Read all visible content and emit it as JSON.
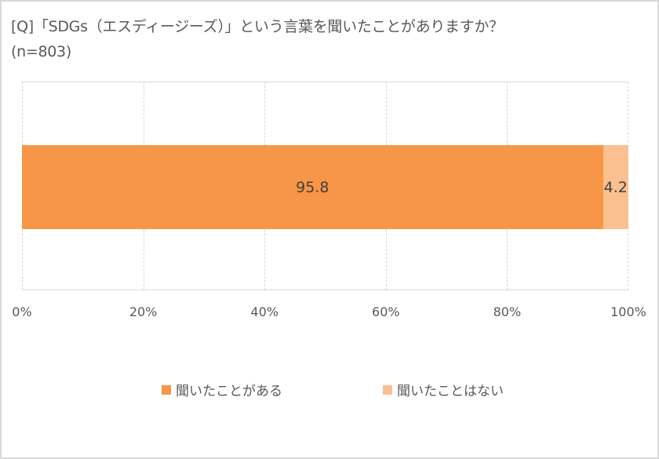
{
  "title": {
    "line1": "[Q]「SDGs（エスディージーズ）」という言葉を聞いたことがありますか？",
    "line2": "(n=803)"
  },
  "colors": {
    "heard": "#f79646",
    "not_heard": "#fac090",
    "grid": "#d9d9d9",
    "text": "#595959",
    "border": "#d9d9d9"
  },
  "axis": {
    "ticks": [
      "0%",
      "20%",
      "40%",
      "60%",
      "80%",
      "100%"
    ]
  },
  "legend": {
    "items": [
      "聞いたことがある",
      "聞いたことはない"
    ]
  },
  "labels": {
    "heard": "95.8",
    "not_heard": "4.2"
  },
  "chart_data": {
    "type": "bar",
    "orientation": "horizontal",
    "stacked": true,
    "percent_stacked": true,
    "title": "[Q]「SDGs（エスディージーズ）」という言葉を聞いたことがありますか？ (n=803)",
    "categories": [
      ""
    ],
    "series": [
      {
        "name": "聞いたことがある",
        "values": [
          95.8
        ],
        "color": "#f79646"
      },
      {
        "name": "聞いたことはない",
        "values": [
          4.2
        ],
        "color": "#fac090"
      }
    ],
    "xlabel": "",
    "ylabel": "",
    "xlim": [
      0,
      100
    ],
    "xticks": [
      "0%",
      "20%",
      "40%",
      "60%",
      "80%",
      "100%"
    ],
    "grid": "vertical dashed",
    "legend_position": "bottom",
    "data_labels": true
  }
}
